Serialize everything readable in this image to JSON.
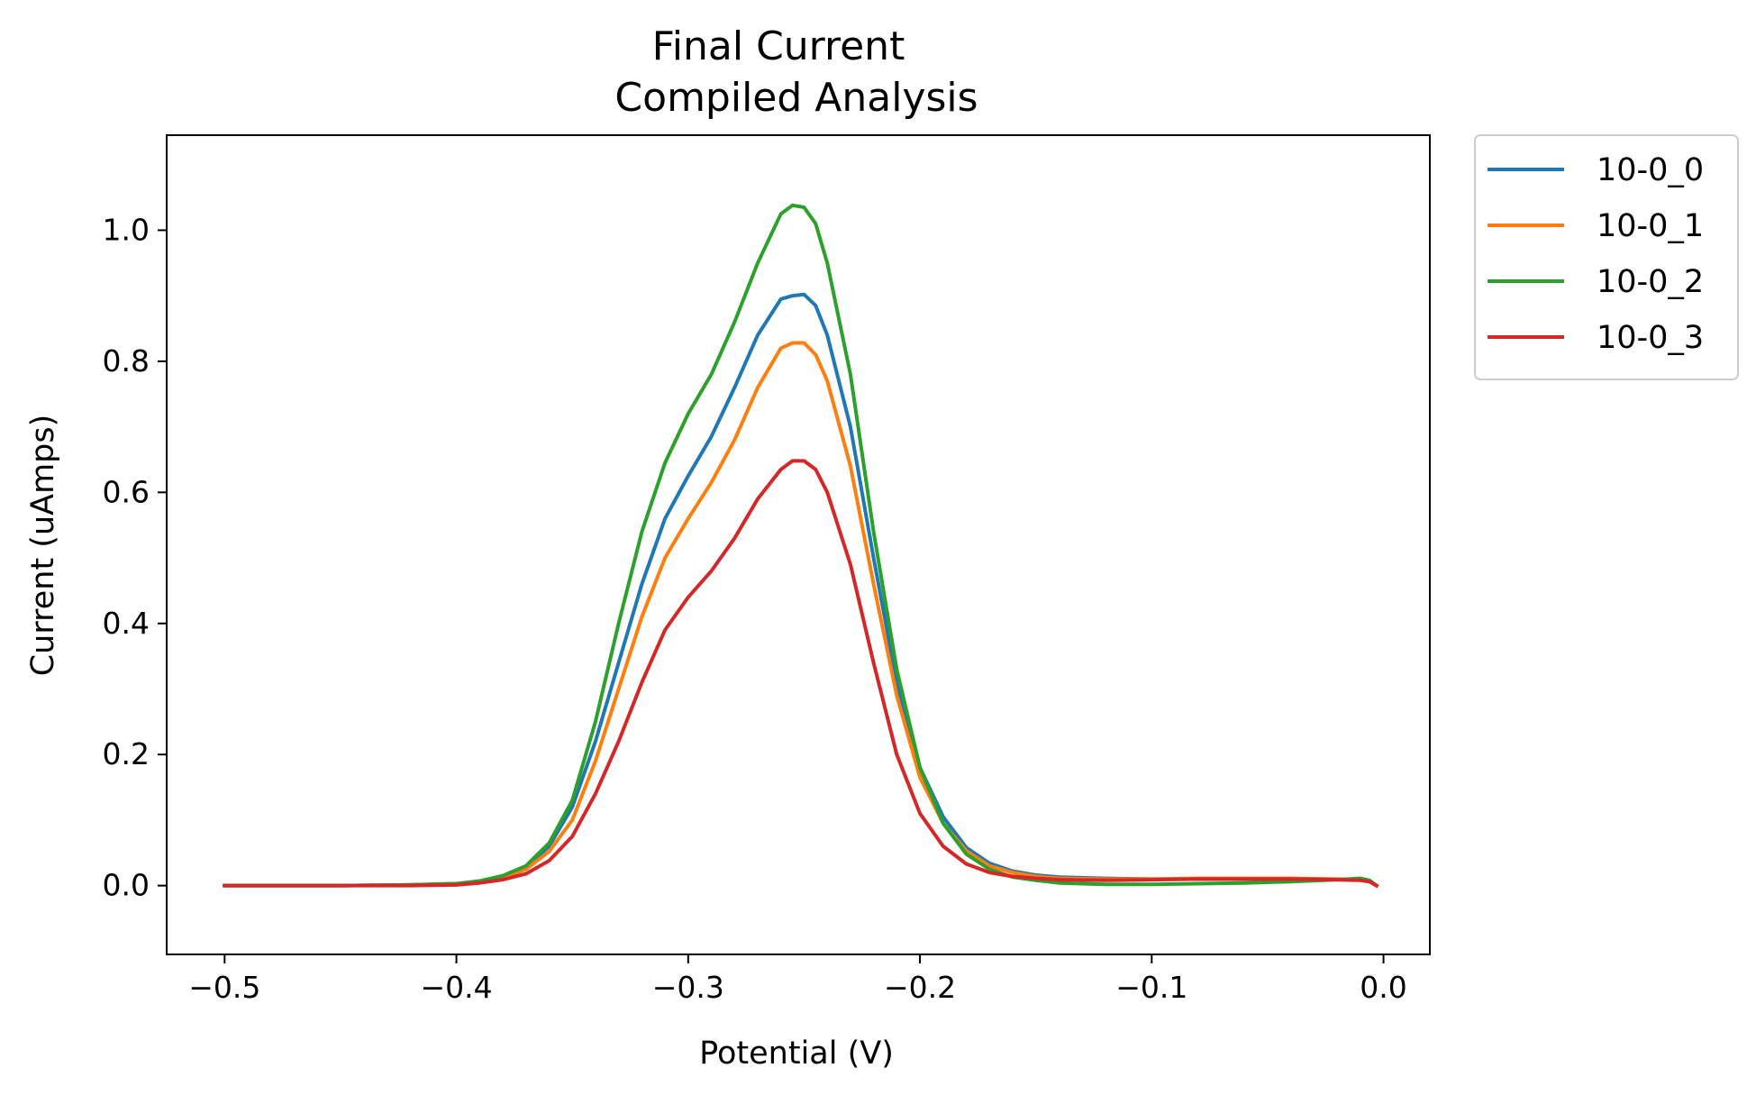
{
  "chart_data": {
    "type": "line",
    "title_line1": "Final Current",
    "title_line2": "Compiled Analysis",
    "xlabel": "Potential (V)",
    "ylabel": "Current (uAmps)",
    "xlim": [
      -0.525,
      0.02
    ],
    "ylim": [
      -0.105,
      1.145
    ],
    "xticks": [
      -0.5,
      -0.4,
      -0.3,
      -0.2,
      -0.1,
      0.0
    ],
    "xtick_labels": [
      "−0.5",
      "−0.4",
      "−0.3",
      "−0.2",
      "−0.1",
      "0.0"
    ],
    "yticks": [
      0.0,
      0.2,
      0.4,
      0.6,
      0.8,
      1.0
    ],
    "ytick_labels": [
      "0.0",
      "0.2",
      "0.4",
      "0.6",
      "0.8",
      "1.0"
    ],
    "grid": false,
    "legend_position": "outside-top-right",
    "x": [
      -0.5,
      -0.45,
      -0.42,
      -0.4,
      -0.39,
      -0.38,
      -0.37,
      -0.36,
      -0.35,
      -0.34,
      -0.33,
      -0.32,
      -0.31,
      -0.3,
      -0.29,
      -0.28,
      -0.27,
      -0.26,
      -0.255,
      -0.25,
      -0.245,
      -0.24,
      -0.23,
      -0.22,
      -0.21,
      -0.2,
      -0.19,
      -0.18,
      -0.17,
      -0.16,
      -0.15,
      -0.14,
      -0.12,
      -0.1,
      -0.08,
      -0.06,
      -0.04,
      -0.02,
      -0.01,
      -0.006,
      -0.003
    ],
    "series": [
      {
        "name": "10-0_0",
        "color": "#1f77b4",
        "values": [
          0.0,
          0.0,
          0.001,
          0.003,
          0.007,
          0.014,
          0.028,
          0.06,
          0.12,
          0.22,
          0.34,
          0.46,
          0.56,
          0.625,
          0.685,
          0.76,
          0.84,
          0.895,
          0.9,
          0.902,
          0.885,
          0.84,
          0.7,
          0.5,
          0.31,
          0.18,
          0.105,
          0.058,
          0.034,
          0.022,
          0.016,
          0.013,
          0.011,
          0.01,
          0.01,
          0.01,
          0.01,
          0.009,
          0.009,
          0.006,
          0.0
        ]
      },
      {
        "name": "10-0_1",
        "color": "#ff7f0e",
        "values": [
          0.0,
          0.0,
          0.001,
          0.003,
          0.006,
          0.012,
          0.025,
          0.052,
          0.1,
          0.19,
          0.3,
          0.41,
          0.5,
          0.56,
          0.615,
          0.68,
          0.76,
          0.82,
          0.828,
          0.828,
          0.81,
          0.77,
          0.64,
          0.46,
          0.29,
          0.165,
          0.095,
          0.053,
          0.03,
          0.02,
          0.014,
          0.011,
          0.01,
          0.01,
          0.011,
          0.011,
          0.011,
          0.01,
          0.009,
          0.006,
          0.0
        ]
      },
      {
        "name": "10-0_2",
        "color": "#2ca02c",
        "values": [
          0.0,
          0.0,
          0.001,
          0.003,
          0.007,
          0.015,
          0.03,
          0.065,
          0.13,
          0.25,
          0.4,
          0.54,
          0.645,
          0.72,
          0.78,
          0.86,
          0.95,
          1.025,
          1.038,
          1.035,
          1.01,
          0.95,
          0.78,
          0.54,
          0.33,
          0.18,
          0.095,
          0.048,
          0.025,
          0.013,
          0.008,
          0.004,
          0.002,
          0.002,
          0.003,
          0.004,
          0.006,
          0.009,
          0.011,
          0.008,
          0.0
        ]
      },
      {
        "name": "10-0_3",
        "color": "#d62728",
        "values": [
          0.0,
          0.0,
          0.0,
          0.001,
          0.004,
          0.009,
          0.018,
          0.038,
          0.075,
          0.14,
          0.22,
          0.31,
          0.39,
          0.44,
          0.48,
          0.53,
          0.59,
          0.635,
          0.648,
          0.648,
          0.635,
          0.6,
          0.49,
          0.34,
          0.2,
          0.11,
          0.06,
          0.033,
          0.02,
          0.014,
          0.011,
          0.009,
          0.008,
          0.009,
          0.01,
          0.01,
          0.01,
          0.009,
          0.008,
          0.006,
          0.0
        ]
      }
    ]
  }
}
